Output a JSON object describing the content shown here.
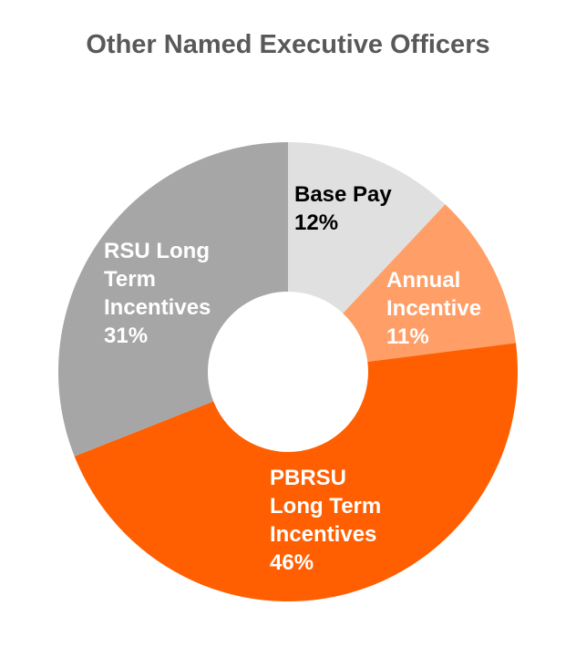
{
  "chart_data": {
    "type": "pie",
    "donut": true,
    "title": "Other Named Executive Officers",
    "slices": [
      {
        "label": "Base Pay",
        "value": 12,
        "value_label": "12%",
        "color": "#e0e0e0",
        "text_color": "#000000"
      },
      {
        "label": "Annual Incentive",
        "value": 11,
        "value_label": "11%",
        "color": "#ff9e66",
        "text_color": "#ffffff"
      },
      {
        "label": "PBRSU Long Term Incentives",
        "value": 46,
        "value_label": "46%",
        "color": "#ff5f00",
        "text_color": "#ffffff"
      },
      {
        "label": "RSU Long Term Incentives",
        "value": 31,
        "value_label": "31%",
        "color": "#a6a6a6",
        "text_color": "#ffffff"
      }
    ],
    "start": "top",
    "direction": "clockwise"
  }
}
